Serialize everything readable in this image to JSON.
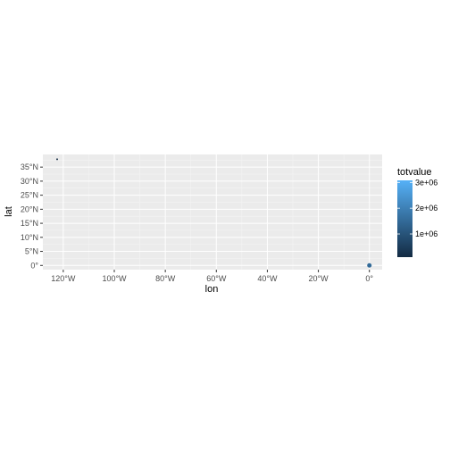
{
  "chart_data": {
    "type": "scatter",
    "xlabel": "lon",
    "ylabel": "lat",
    "xlim": [
      -128,
      5
    ],
    "ylim": [
      -1.5,
      39.5
    ],
    "x_ticks": [
      {
        "value": -120,
        "label": "120°W"
      },
      {
        "value": -100,
        "label": "100°W"
      },
      {
        "value": -80,
        "label": "80°W"
      },
      {
        "value": -60,
        "label": "60°W"
      },
      {
        "value": -40,
        "label": "40°W"
      },
      {
        "value": -20,
        "label": "20°W"
      },
      {
        "value": 0,
        "label": "0°"
      }
    ],
    "y_ticks": [
      {
        "value": 0,
        "label": "0°"
      },
      {
        "value": 5,
        "label": "5°N"
      },
      {
        "value": 10,
        "label": "10°N"
      },
      {
        "value": 15,
        "label": "15°N"
      },
      {
        "value": 20,
        "label": "20°N"
      },
      {
        "value": 25,
        "label": "25°N"
      },
      {
        "value": 30,
        "label": "30°N"
      },
      {
        "value": 35,
        "label": "35°N"
      }
    ],
    "points": [
      {
        "lon": -122.4,
        "lat": 37.8,
        "totvalue": 100000
      },
      {
        "lon": 0.0,
        "lat": 0.0,
        "totvalue": 1500000
      }
    ],
    "legend": {
      "title": "totvalue",
      "ticks": [
        {
          "value": 1000000,
          "label": "1e+06"
        },
        {
          "value": 2000000,
          "label": "2e+06"
        },
        {
          "value": 3000000,
          "label": "3e+06"
        }
      ],
      "range": [
        100000,
        3080000
      ],
      "low_color": "#132B43",
      "high_color": "#56B1F7",
      "placement": "right"
    },
    "panel_background": "#EBEBEB",
    "grid_major_color": "#FFFFFF",
    "grid": true
  }
}
